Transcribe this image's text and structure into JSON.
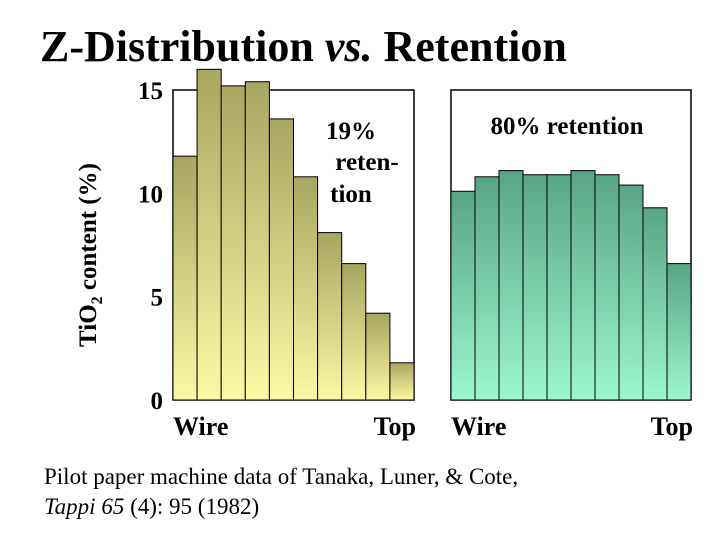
{
  "title": {
    "main": "Z-Distribution",
    "vs": "vs.",
    "tail": "Retention"
  },
  "citation": {
    "line1": "Pilot paper machine data of Tanaka, Luner, & Cote,",
    "journal": "Tappi 65",
    "rest": " (4):  95 (1982)"
  },
  "colors": {
    "left_top": "#a8a660",
    "left_bottom": "#fcf9a4",
    "right_top": "#58a585",
    "right_bottom": "#9cf7cf"
  },
  "chart_data": [
    {
      "type": "bar",
      "ylabel_main": "TiO",
      "ylabel_sub": "2",
      "ylabel_tail": " content  (%)",
      "yticks": [
        "0",
        "5",
        "10",
        "15"
      ],
      "ylim": [
        0,
        15
      ],
      "x_start_label": "Wire",
      "x_end_label": "Top",
      "annotation_lines": [
        "19%",
        "reten-",
        "tion"
      ],
      "values": [
        11.8,
        16.0,
        15.2,
        15.4,
        13.6,
        10.8,
        8.1,
        6.6,
        4.2,
        1.8
      ]
    },
    {
      "type": "bar",
      "ylim": [
        0,
        15
      ],
      "x_start_label": "Wire",
      "x_end_label": "Top",
      "annotation_lines": [
        "80% retention"
      ],
      "values": [
        10.1,
        10.8,
        11.1,
        10.9,
        10.9,
        11.1,
        10.9,
        10.4,
        9.3,
        6.6
      ]
    }
  ]
}
